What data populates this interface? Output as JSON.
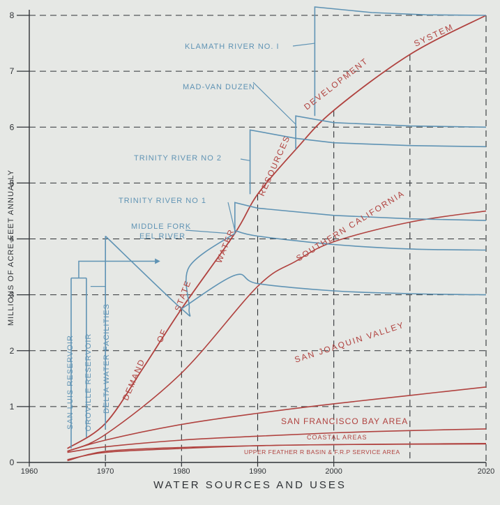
{
  "chart_data": {
    "type": "line",
    "title": "WATER SOURCES AND USES",
    "ylabel": "MILLIONS OF ACRE-FEET ANNUALLY",
    "xlabel": "",
    "xlim": [
      1960,
      2020
    ],
    "ylim": [
      0,
      8
    ],
    "x_ticks": [
      "1960",
      "1970",
      "1980",
      "1990",
      "2000",
      "2020"
    ],
    "y_ticks": [
      "0",
      "1",
      "2",
      "3",
      "4",
      "5",
      "6",
      "7",
      "8"
    ],
    "colors": {
      "demand": "#b0423f",
      "supply": "#5f93b4",
      "ink": "#2f3236"
    },
    "demand_series": [
      {
        "name": "STATE WATER RESOURCES DEVELOPMENT SYSTEM",
        "x": [
          1965,
          1970,
          1975,
          1980,
          1987,
          1990,
          1995,
          2000,
          2010,
          2020
        ],
        "y": [
          0.25,
          0.7,
          1.7,
          2.75,
          4.1,
          4.8,
          5.6,
          6.3,
          7.3,
          8.0
        ]
      },
      {
        "name": "SOUTHERN CALIFORNIA",
        "x": [
          1965,
          1970,
          1980,
          1990,
          1995,
          2000,
          2010,
          2020
        ],
        "y": [
          0.2,
          0.5,
          1.6,
          3.15,
          3.6,
          3.95,
          4.3,
          4.5
        ]
      },
      {
        "name": "SAN JOAQUIN VALLEY",
        "x": [
          1965,
          1970,
          1980,
          1990,
          2000,
          2010,
          2020
        ],
        "y": [
          0.2,
          0.4,
          0.68,
          0.88,
          1.05,
          1.2,
          1.35
        ]
      },
      {
        "name": "SAN FRANCISCO BAY AREA",
        "x": [
          1965,
          1970,
          1980,
          1990,
          2000,
          2010,
          2020
        ],
        "y": [
          0.18,
          0.28,
          0.4,
          0.47,
          0.53,
          0.57,
          0.6
        ]
      },
      {
        "name": "COASTAL AREAS",
        "x": [
          1965,
          1970,
          1980,
          1990,
          2000,
          2010,
          2020
        ],
        "y": [
          0.05,
          0.18,
          0.25,
          0.3,
          0.32,
          0.33,
          0.34
        ]
      }
    ],
    "supply_series": [
      {
        "name": "SAN LUIS RESERVOIR",
        "x": [
          1965.5,
          1965.5
        ],
        "y": [
          0.25,
          3.3
        ]
      },
      {
        "name": "OROVILLE RESERVOIR",
        "x": [
          1967.5,
          1967.5
        ],
        "y": [
          0.45,
          3.3
        ]
      },
      {
        "name": "DELTA WATER FACILITIES",
        "x": [
          1970,
          1970
        ],
        "y": [
          0.6,
          4.05
        ]
      },
      {
        "name": "MIDDLE FORK EEL RIVER",
        "x": [
          1970,
          1980,
          1981,
          1981,
          1987
        ],
        "y": [
          4.05,
          2.75,
          2.75,
          3.5,
          4.1
        ]
      },
      {
        "name": "",
        "x": [
          1980,
          1987,
          1990,
          2000,
          2010,
          2020
        ],
        "y": [
          2.75,
          3.35,
          3.2,
          3.07,
          3.02,
          3.0
        ]
      },
      {
        "name": "TRINITY RIVER NO 1",
        "x": [
          1987,
          1990,
          2000,
          2010,
          2020
        ],
        "y": [
          4.15,
          4.05,
          3.9,
          3.82,
          3.8
        ]
      },
      {
        "name": "TRINITY RIVER NO 2",
        "x": [
          1987,
          1987,
          1990,
          2000,
          2010,
          2020
        ],
        "y": [
          4.1,
          4.65,
          4.55,
          4.42,
          4.36,
          4.33
        ]
      },
      {
        "name": "MAD-VAN DUZEN",
        "x": [
          1989,
          1989,
          1995,
          2000,
          2010,
          2020
        ],
        "y": [
          4.8,
          5.95,
          5.8,
          5.72,
          5.67,
          5.65
        ]
      },
      {
        "name": "KLAMATH RIVER NO. I",
        "x": [
          1995,
          1995,
          2000,
          2010,
          2020
        ],
        "y": [
          5.6,
          6.2,
          6.08,
          6.02,
          6.0
        ]
      },
      {
        "name": "",
        "x": [
          1997.5,
          1997.5,
          2005,
          2012,
          2020
        ],
        "y": [
          6.2,
          8.15,
          8.05,
          8.01,
          8.0
        ]
      }
    ],
    "upper_feather_line": {
      "name": "UPPER FEATHER R BASIN & F.R.P SERVICE AREA"
    },
    "vertical_markers_x": [
      1970,
      1980,
      1990,
      2000,
      2010,
      2020
    ],
    "annotations": [
      "DEMAND",
      "OF",
      "STATE",
      "WATER",
      "RESOURCES",
      "DEVELOPMENT",
      "SYSTEM"
    ],
    "grid": false
  }
}
